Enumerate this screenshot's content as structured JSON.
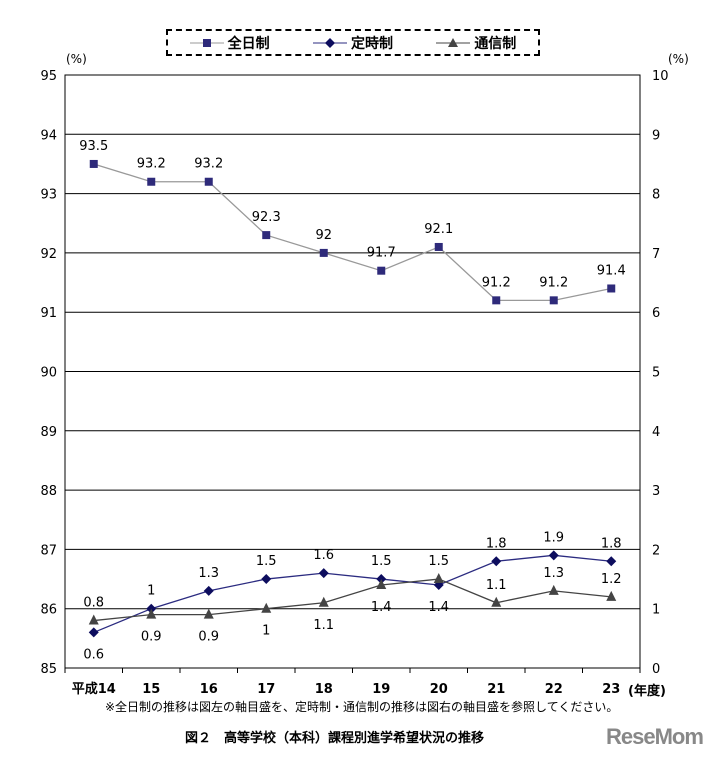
{
  "chart_data": {
    "type": "line",
    "title": "図２　高等学校（本科）課程別進学希望状況の推移",
    "note": "※全日制の推移は図左の軸目盛を、定時制・通信制の推移は図右の軸目盛を参照してください。",
    "categories": [
      "平成14",
      "15",
      "16",
      "17",
      "18",
      "19",
      "20",
      "21",
      "22",
      "23"
    ],
    "xlabel": "(年度)",
    "y_left": {
      "label": "(%)",
      "range": [
        85,
        95
      ],
      "ticks": [
        85,
        86,
        87,
        88,
        89,
        90,
        91,
        92,
        93,
        94,
        95
      ]
    },
    "y_right": {
      "label": "(%)",
      "range": [
        0,
        10
      ],
      "ticks": [
        0,
        1,
        2,
        3,
        4,
        5,
        6,
        7,
        8,
        9,
        10
      ]
    },
    "grid": true,
    "legend_placement": "top",
    "series": [
      {
        "name": "全日制",
        "axis": "left",
        "marker": "square",
        "color": "#2e2a7a",
        "line_color": "#999999",
        "values": [
          93.5,
          93.2,
          93.2,
          92.3,
          92,
          91.7,
          92.1,
          91.2,
          91.2,
          91.4
        ],
        "labels": [
          "93.5",
          "93.2",
          "93.2",
          "92.3",
          "92",
          "91.7",
          "92.1",
          "91.2",
          "91.2",
          "91.4"
        ]
      },
      {
        "name": "定時制",
        "axis": "right",
        "marker": "diamond",
        "color": "#0d0d5e",
        "line_color": "#2b2b80",
        "values": [
          0.6,
          1,
          1.3,
          1.5,
          1.6,
          1.5,
          1.4,
          1.8,
          1.9,
          1.8
        ],
        "labels": [
          "0.6",
          "1",
          "1.3",
          "1.5",
          "1.6",
          "1.5",
          "1.4",
          "1.8",
          "1.9",
          "1.8"
        ]
      },
      {
        "name": "通信制",
        "axis": "right",
        "marker": "triangle",
        "color": "#444444",
        "line_color": "#444444",
        "values": [
          0.8,
          0.9,
          0.9,
          1,
          1.1,
          1.4,
          1.5,
          1.1,
          1.3,
          1.2
        ],
        "labels": [
          "0.8",
          "0.9",
          "0.9",
          "1",
          "1.1",
          "1.4",
          "1.5",
          "1.1",
          "1.3",
          "1.2"
        ]
      }
    ]
  },
  "watermark": "ReseMom"
}
